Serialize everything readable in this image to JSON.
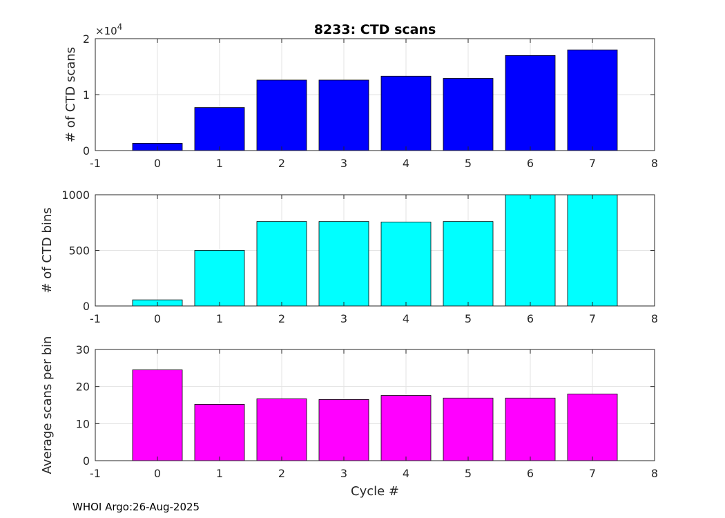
{
  "figure": {
    "title": "8233: CTD scans",
    "footer": "WHOI Argo:26-Aug-2025"
  },
  "chart_data": [
    {
      "type": "bar",
      "title": "8233: CTD scans",
      "xlabel": "",
      "ylabel": "# of CTD scans",
      "x": [
        0,
        1,
        2,
        3,
        4,
        5,
        6,
        7
      ],
      "values": [
        1300,
        7700,
        12600,
        12600,
        13300,
        12900,
        17000,
        18000
      ],
      "xlim": [
        -1,
        8
      ],
      "ylim": [
        0,
        20000
      ],
      "xticks": [
        -1,
        0,
        1,
        2,
        3,
        4,
        5,
        6,
        7,
        8
      ],
      "yticks": [
        0,
        10000,
        20000
      ],
      "ytick_labels": [
        "0",
        "1",
        "2"
      ],
      "exponent_label": "×10",
      "exponent_power": "4",
      "grid": true,
      "bar_color": "#0000ff"
    },
    {
      "type": "bar",
      "title": "",
      "xlabel": "",
      "ylabel": "# of CTD bins",
      "x": [
        0,
        1,
        2,
        3,
        4,
        5,
        6,
        7
      ],
      "values": [
        55,
        500,
        760,
        760,
        755,
        760,
        1000,
        1000
      ],
      "xlim": [
        -1,
        8
      ],
      "ylim": [
        0,
        1000
      ],
      "xticks": [
        -1,
        0,
        1,
        2,
        3,
        4,
        5,
        6,
        7,
        8
      ],
      "yticks": [
        0,
        500,
        1000
      ],
      "ytick_labels": [
        "0",
        "500",
        "1000"
      ],
      "grid": true,
      "bar_color": "#00ffff"
    },
    {
      "type": "bar",
      "title": "",
      "xlabel": "Cycle #",
      "ylabel": "Average scans per bin",
      "x": [
        0,
        1,
        2,
        3,
        4,
        5,
        6,
        7
      ],
      "values": [
        24.5,
        15.2,
        16.7,
        16.5,
        17.6,
        16.9,
        16.9,
        18.0
      ],
      "xlim": [
        -1,
        8
      ],
      "ylim": [
        0,
        30
      ],
      "xticks": [
        -1,
        0,
        1,
        2,
        3,
        4,
        5,
        6,
        7,
        8
      ],
      "yticks": [
        0,
        10,
        20,
        30
      ],
      "ytick_labels": [
        "0",
        "10",
        "20",
        "30"
      ],
      "grid": true,
      "bar_color": "#ff00ff"
    }
  ]
}
